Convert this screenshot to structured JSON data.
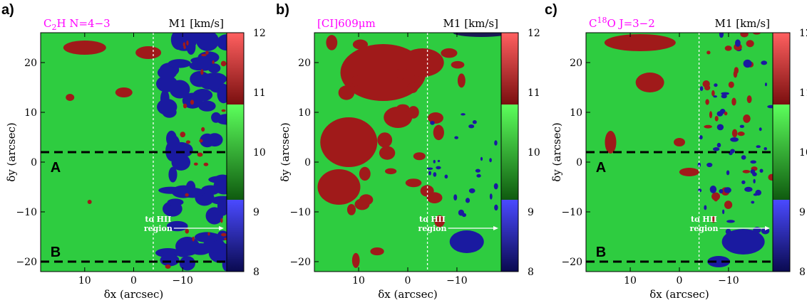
{
  "chart_data": [
    {
      "type": "heatmap",
      "panel_label": "a)",
      "title_left_main": "C",
      "title_left_sub": "2",
      "title_left_rest": "H N=4−3",
      "title_right": "M1 [km/s]",
      "xlabel": "δx (arcsec)",
      "ylabel": "δy (arcsec)",
      "xlim": [
        19,
        -19
      ],
      "ylim": [
        -22,
        26
      ],
      "xticks": [
        10,
        0,
        -10
      ],
      "yticks": [
        20,
        10,
        0,
        -10,
        -20
      ],
      "colorbar": {
        "range": [
          8,
          12
        ],
        "ticks": [
          12,
          11,
          10,
          9,
          8
        ],
        "bands": [
          {
            "from": 8,
            "to": 9.2,
            "color": "#1a1aa0"
          },
          {
            "from": 9.2,
            "to": 10.8,
            "color": "#2ecc40"
          },
          {
            "from": 10.8,
            "to": 12,
            "color": "#a01a1a"
          }
        ]
      },
      "dashed_vertical_x": -4,
      "dashed_horizontal_y": [
        2,
        -20
      ],
      "region_labels": [
        {
          "text": "A",
          "x": 17,
          "y": -1
        },
        {
          "text": "B",
          "x": 17,
          "y": -18
        }
      ],
      "annotation": {
        "line1": "to HII",
        "line2": "region",
        "x": -5,
        "y": -12
      }
    },
    {
      "type": "heatmap",
      "panel_label": "b)",
      "title_left_main": "[CI]609",
      "title_left_sub": "",
      "title_left_rest": "μm",
      "title_right": "M1 [km/s]",
      "xlabel": "δx (arcsec)",
      "ylabel": "δy (arcsec)",
      "xlim": [
        19,
        -19
      ],
      "ylim": [
        -22,
        26
      ],
      "xticks": [
        10,
        0,
        -10
      ],
      "yticks": [
        20,
        10,
        0,
        -10,
        -20
      ],
      "colorbar": {
        "range": [
          8,
          12
        ],
        "ticks": [
          12,
          11,
          10,
          9,
          8
        ],
        "bands": [
          {
            "from": 8,
            "to": 9.2,
            "color": "#1a1aa0"
          },
          {
            "from": 9.2,
            "to": 10.8,
            "color": "#2ecc40"
          },
          {
            "from": 10.8,
            "to": 12,
            "color": "#a01a1a"
          }
        ]
      },
      "dashed_vertical_x": -4,
      "dashed_horizontal_y": [],
      "region_labels": [],
      "annotation": {
        "line1": "to HII",
        "line2": "region",
        "x": -5,
        "y": -12
      }
    },
    {
      "type": "heatmap",
      "panel_label": "c)",
      "title_left_main": "C",
      "title_left_sup": "18",
      "title_left_rest": "O J=3−2",
      "title_right": "M1 [km/s]",
      "xlabel": "δx (arcsec)",
      "ylabel": "δy (arcsec)",
      "xlim": [
        19,
        -19
      ],
      "ylim": [
        -22,
        26
      ],
      "xticks": [
        10,
        0,
        -10
      ],
      "yticks": [
        20,
        10,
        0,
        -10,
        -20
      ],
      "colorbar": {
        "range": [
          8,
          12
        ],
        "ticks": [
          12,
          11,
          10,
          9,
          8
        ],
        "bands": [
          {
            "from": 8,
            "to": 9.2,
            "color": "#1a1aa0"
          },
          {
            "from": 9.2,
            "to": 10.8,
            "color": "#2ecc40"
          },
          {
            "from": 10.8,
            "to": 12,
            "color": "#a01a1a"
          }
        ]
      },
      "dashed_vertical_x": -4,
      "dashed_horizontal_y": [
        2,
        -20
      ],
      "region_labels": [
        {
          "text": "A",
          "x": 17,
          "y": -1
        },
        {
          "text": "B",
          "x": 17,
          "y": -18
        }
      ],
      "annotation": {
        "line1": "to HII",
        "line2": "region",
        "x": -5,
        "y": -12
      }
    }
  ]
}
